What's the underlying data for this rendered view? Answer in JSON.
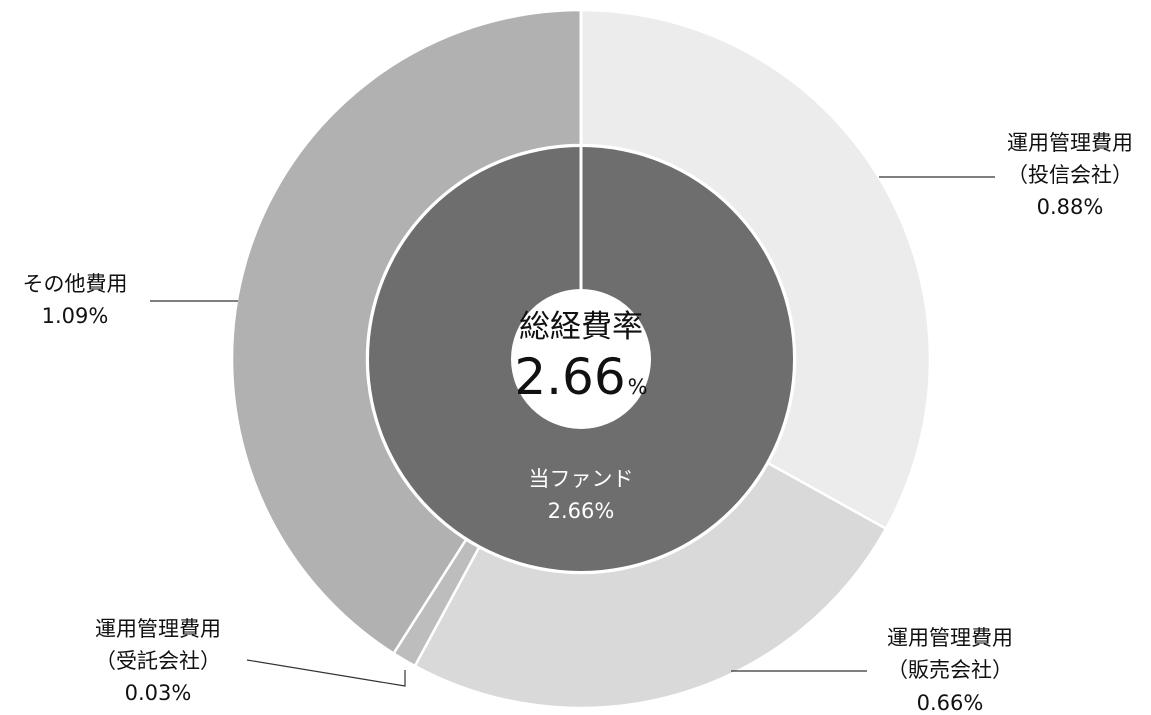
{
  "chart_data": {
    "type": "pie",
    "subtype": "double-donut",
    "center": {
      "title": "総経費率",
      "value": "2.66",
      "unit": "%"
    },
    "inner_ring": {
      "series": [
        {
          "label": "当ファンド",
          "value": 2.66,
          "display": "2.66%",
          "color": "#6e6e6e"
        }
      ]
    },
    "outer_ring": {
      "series": [
        {
          "label_line1": "運用管理費用",
          "label_line2": "（投信会社）",
          "value": 0.88,
          "display": "0.88%",
          "color": "#ececec"
        },
        {
          "label_line1": "運用管理費用",
          "label_line2": "（販売会社）",
          "value": 0.66,
          "display": "0.66%",
          "color": "#d9d9d9"
        },
        {
          "label_line1": "運用管理費用",
          "label_line2": "（受託会社）",
          "value": 0.03,
          "display": "0.03%",
          "color": "#bdbdbd"
        },
        {
          "label_line1": "その他費用",
          "label_line2": "",
          "value": 1.09,
          "display": "1.09%",
          "color": "#b1b1b1"
        }
      ]
    },
    "legend": "none"
  }
}
